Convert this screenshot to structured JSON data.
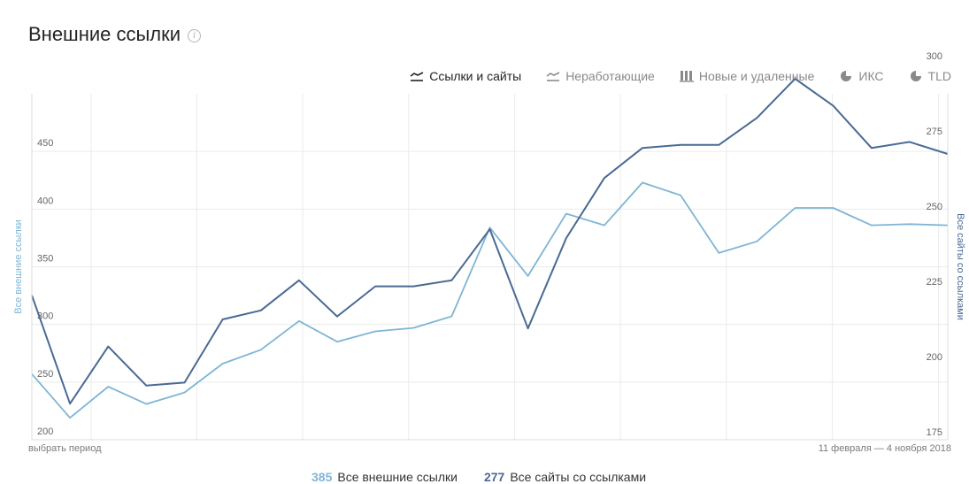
{
  "header": {
    "title": "Внешние ссылки",
    "info_icon": "info-icon"
  },
  "tabs": [
    {
      "label": "Ссылки и сайты",
      "icon": "line-chart-icon",
      "active": true
    },
    {
      "label": "Неработающие",
      "icon": "line-chart-icon",
      "active": false
    },
    {
      "label": "Новые и удаленные",
      "icon": "bar-chart-icon",
      "active": false
    },
    {
      "label": "ИКС",
      "icon": "pie-chart-icon",
      "active": false
    },
    {
      "label": "TLD",
      "icon": "pie-chart-icon",
      "active": false
    }
  ],
  "footer": {
    "period_link": "выбрать период",
    "date_range": "11 февраля — 4 ноября 2018"
  },
  "legend": [
    {
      "value": "385",
      "label": "Все внешние ссылки",
      "color": "#7fb5d5"
    },
    {
      "value": "277",
      "label": "Все сайты со ссылками",
      "color": "#4a6a93"
    }
  ],
  "chart_data": {
    "type": "line",
    "yaxis_left": {
      "label": "Все внешние ссылки",
      "ticks": [
        200,
        250,
        300,
        350,
        400,
        450
      ],
      "range": [
        200,
        500
      ]
    },
    "yaxis_right": {
      "label": "Все сайты со ссылками",
      "ticks": [
        175,
        200,
        225,
        250,
        275,
        300
      ],
      "range": [
        175,
        290
      ]
    },
    "grid": true,
    "series": [
      {
        "name": "Все внешние ссылки",
        "axis": "left",
        "color": "#7fb5d5",
        "values": [
          257,
          219,
          246,
          231,
          241,
          266,
          278,
          303,
          285,
          294,
          297,
          307,
          384,
          342,
          396,
          386,
          423,
          412,
          362,
          372,
          401,
          401,
          386,
          387,
          386
        ]
      },
      {
        "name": "Все сайты со ссылками",
        "axis": "right",
        "color": "#4a6a93",
        "values": [
          223,
          187,
          206,
          193,
          194,
          215,
          218,
          228,
          216,
          226,
          226,
          228,
          245,
          212,
          242,
          262,
          272,
          273,
          273,
          282,
          295,
          286,
          272,
          274,
          270
        ]
      }
    ]
  }
}
